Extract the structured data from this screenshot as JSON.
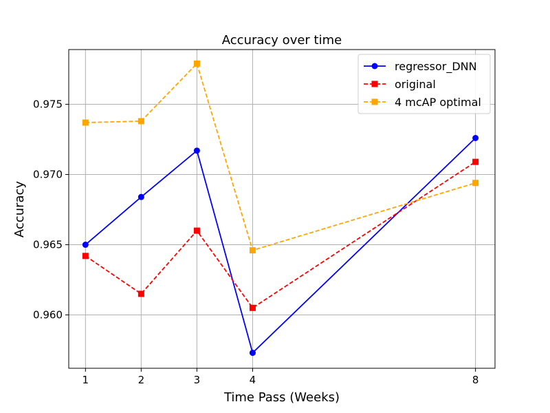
{
  "chart_data": {
    "type": "line",
    "title": "Accuracy over time",
    "xlabel": "Time Pass (Weeks)",
    "ylabel": "Accuracy",
    "x": [
      1,
      2,
      3,
      4,
      8
    ],
    "xticks": [
      1,
      2,
      3,
      4,
      8
    ],
    "yticks": [
      0.96,
      0.965,
      0.97,
      0.975
    ],
    "ytick_labels": [
      "0.960",
      "0.965",
      "0.970",
      "0.975"
    ],
    "xlim": [
      0.7,
      8.35
    ],
    "ylim": [
      0.9562,
      0.9789
    ],
    "grid": true,
    "legend_position": "top-right",
    "series": [
      {
        "name": "regressor_DNN",
        "values": [
          0.965,
          0.9684,
          0.9717,
          0.9573,
          0.9726
        ],
        "color": "#0000ff",
        "line_style": "solid",
        "marker": "circle"
      },
      {
        "name": "original",
        "values": [
          0.9642,
          0.9615,
          0.966,
          0.9605,
          0.9709
        ],
        "color": "#ff0000",
        "line_style": "dashed",
        "marker": "square"
      },
      {
        "name": "4 mcAP optimal",
        "values": [
          0.9737,
          0.9738,
          0.9779,
          0.9646,
          0.9694
        ],
        "color": "#ffa500",
        "line_style": "dashed",
        "marker": "square"
      }
    ]
  }
}
